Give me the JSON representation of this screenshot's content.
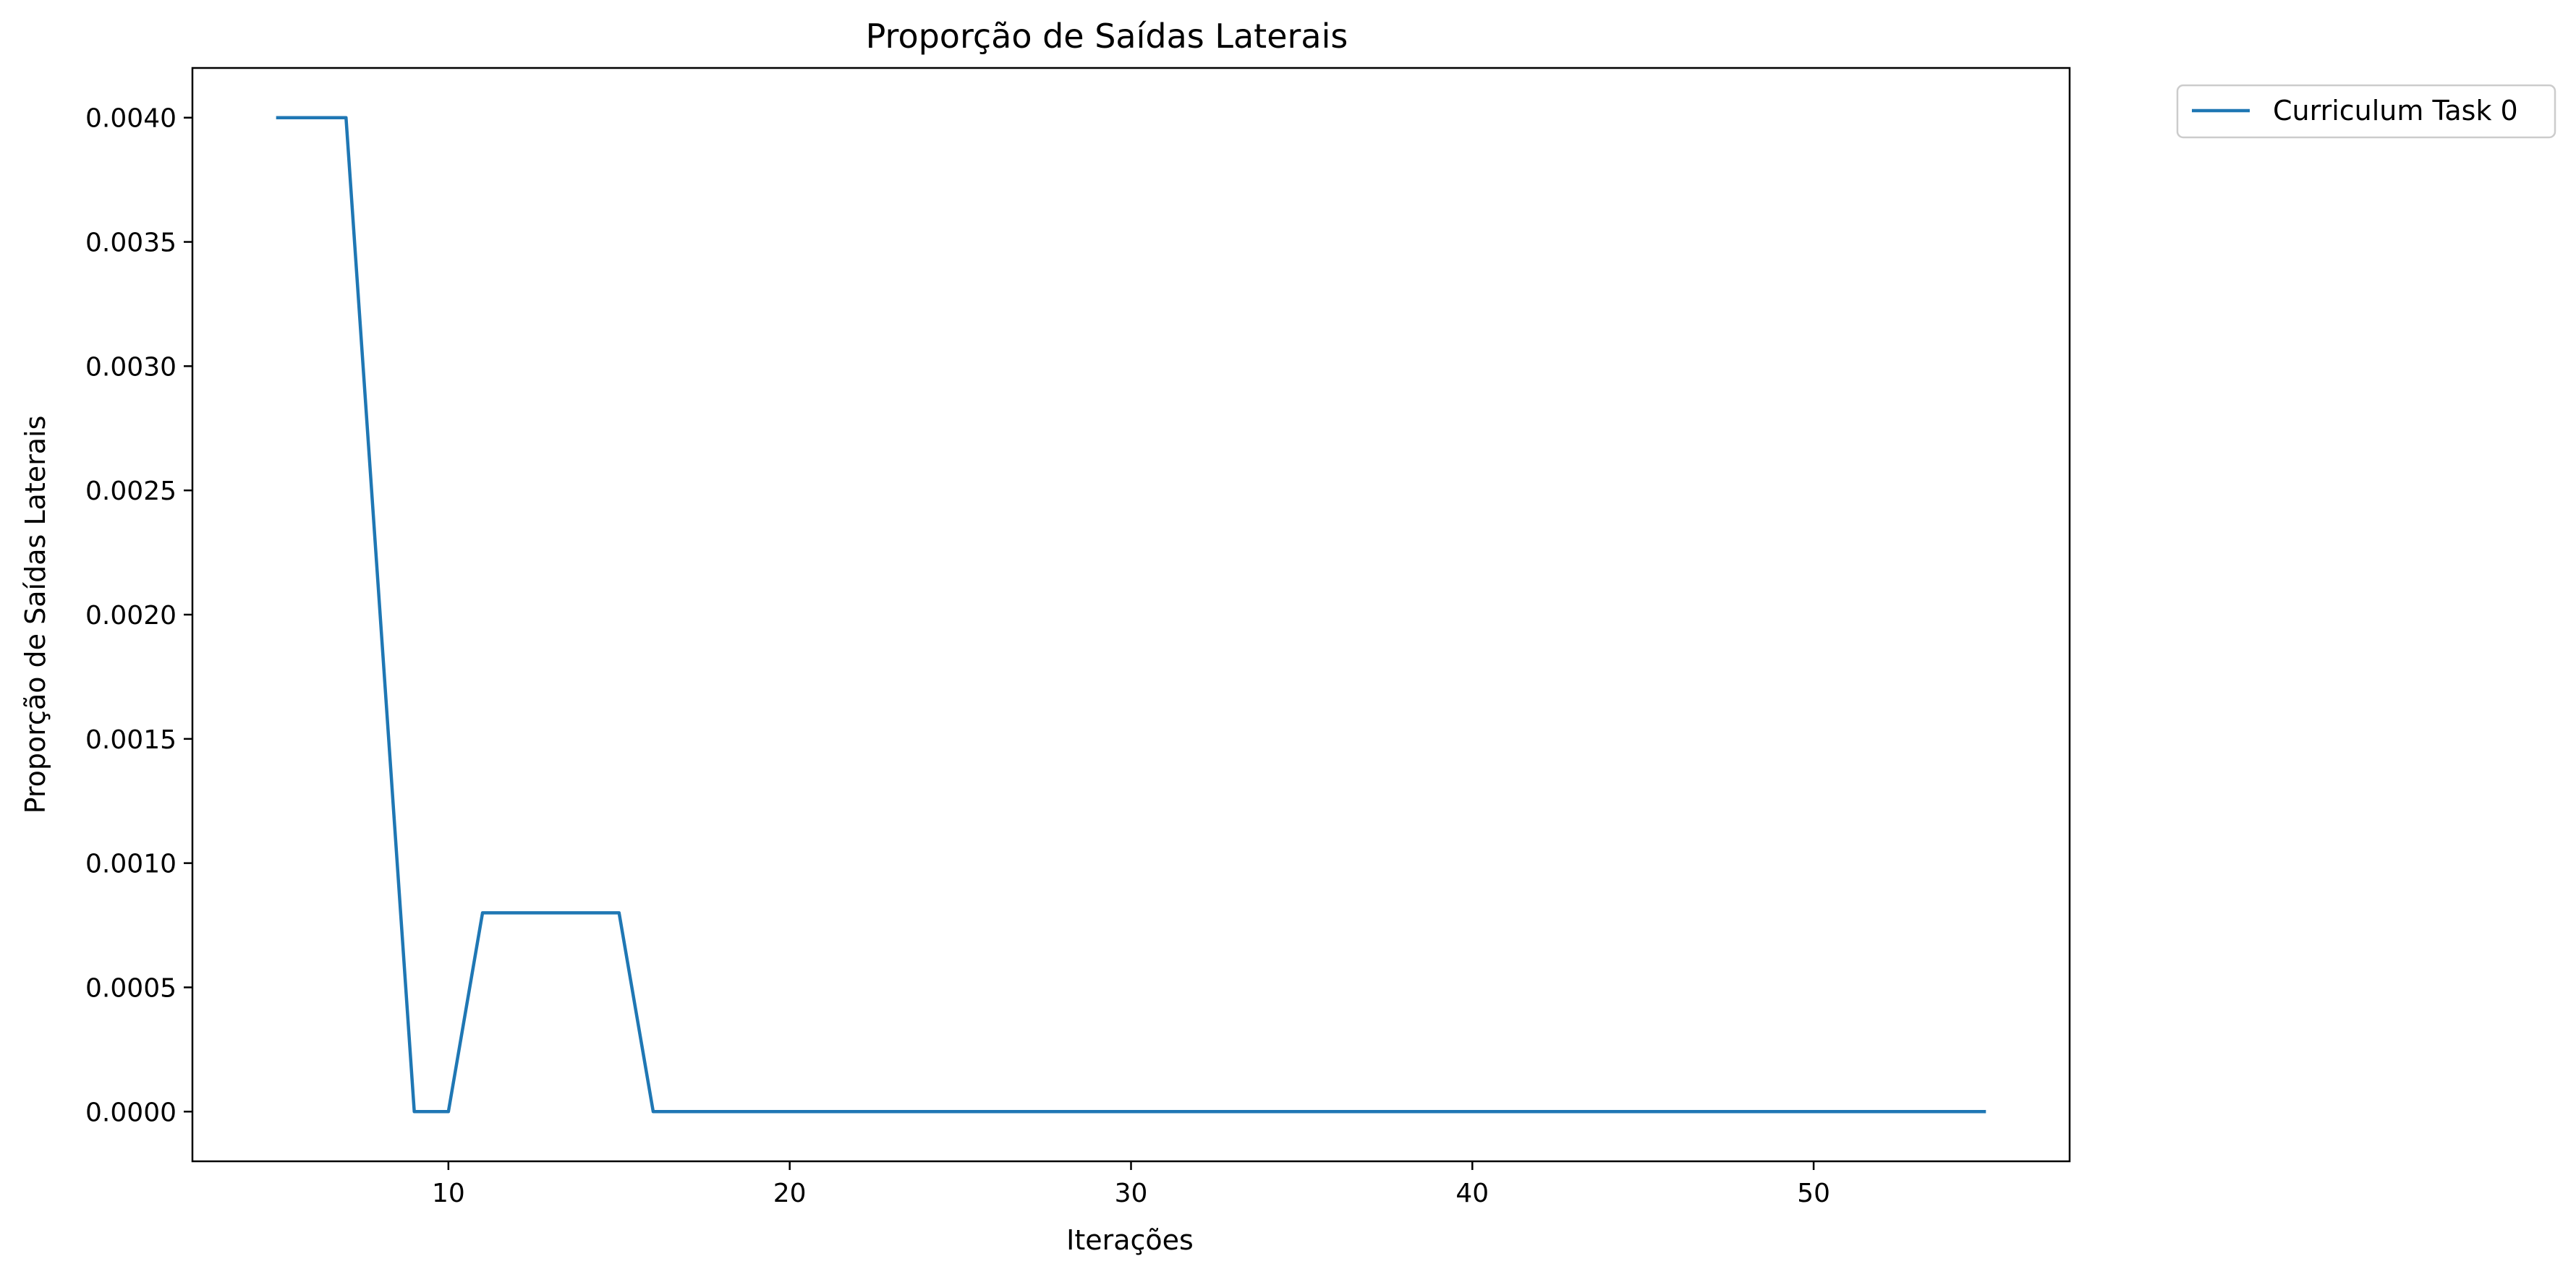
{
  "chart_data": {
    "type": "line",
    "title": "Proporção de Saídas Laterais",
    "xlabel": "Iterações",
    "ylabel": "Proporção de Saídas Laterais",
    "xlim": [
      2.5,
      57.5
    ],
    "ylim": [
      -0.0002,
      0.0042
    ],
    "xticks": [
      10,
      20,
      30,
      40,
      50
    ],
    "xtick_labels": [
      "10",
      "20",
      "30",
      "40",
      "50"
    ],
    "yticks": [
      0.0,
      0.0005,
      0.001,
      0.0015,
      0.002,
      0.0025,
      0.003,
      0.0035,
      0.004
    ],
    "ytick_labels": [
      "0.0000",
      "0.0005",
      "0.0010",
      "0.0015",
      "0.0020",
      "0.0025",
      "0.0030",
      "0.0035",
      "0.0040"
    ],
    "grid": false,
    "legend_position": "outside-top-right",
    "series": [
      {
        "name": "Curriculum Task 0",
        "color": "#1f77b4",
        "x": [
          5,
          6,
          7,
          9,
          10,
          11,
          12,
          13,
          14,
          15,
          16,
          20,
          25,
          30,
          35,
          40,
          45,
          50,
          55
        ],
        "y": [
          0.004,
          0.004,
          0.004,
          0.0,
          0.0,
          0.0008,
          0.0008,
          0.0008,
          0.0008,
          0.0008,
          0.0,
          0.0,
          0.0,
          0.0,
          0.0,
          0.0,
          0.0,
          0.0,
          0.0
        ]
      }
    ]
  }
}
